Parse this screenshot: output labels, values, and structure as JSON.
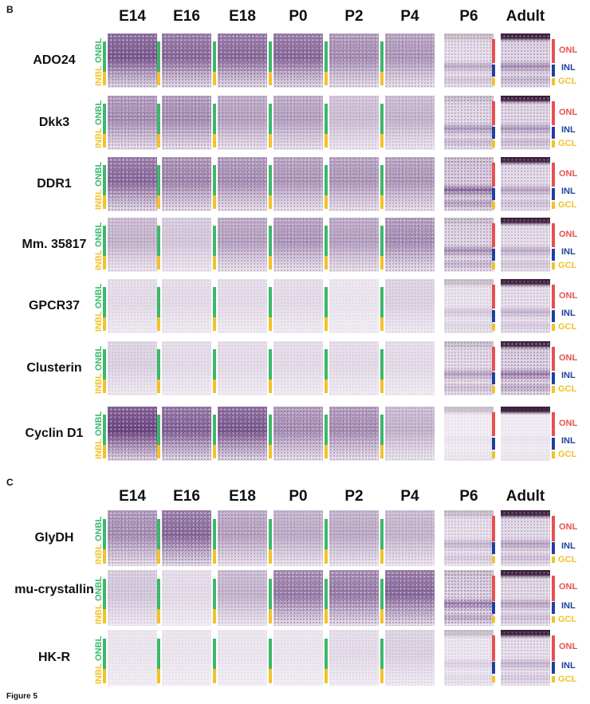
{
  "colors": {
    "onbl": "#3cb86a",
    "inbl": "#f2c22a",
    "onl": "#e8504f",
    "inl": "#2040a0",
    "gcl": "#f2c22a",
    "stain": "#5a2e72"
  },
  "sections": [
    {
      "label": "B",
      "columns": [
        "E14",
        "E16",
        "E18",
        "P0",
        "P2",
        "P4",
        "P6",
        "Adult"
      ],
      "rows": [
        {
          "label": "ADO24",
          "intensity": [
            0.8,
            0.7,
            0.7,
            0.7,
            0.5,
            0.45,
            0.35,
            0.5
          ]
        },
        {
          "label": "Dkk3",
          "intensity": [
            0.5,
            0.5,
            0.4,
            0.4,
            0.25,
            0.3,
            0.45,
            0.45
          ]
        },
        {
          "label": "DDR1",
          "intensity": [
            0.7,
            0.55,
            0.5,
            0.45,
            0.45,
            0.45,
            0.7,
            0.4
          ]
        },
        {
          "label": "Mm. 35817",
          "intensity": [
            0.3,
            0.2,
            0.4,
            0.45,
            0.4,
            0.5,
            0.5,
            0.35
          ]
        },
        {
          "label": "GPCR37",
          "intensity": [
            0.1,
            0.1,
            0.1,
            0.1,
            0.05,
            0.15,
            0.2,
            0.3
          ]
        },
        {
          "label": "Clusterin",
          "intensity": [
            0.15,
            0.1,
            0.1,
            0.1,
            0.1,
            0.1,
            0.4,
            0.6
          ]
        },
        {
          "label": "Cyclin D1",
          "intensity": [
            0.9,
            0.75,
            0.8,
            0.5,
            0.5,
            0.3,
            0.05,
            0.05
          ]
        }
      ]
    },
    {
      "label": "C",
      "columns": [
        "E14",
        "E16",
        "E18",
        "P0",
        "P2",
        "P4",
        "P6",
        "Adult"
      ],
      "rows": [
        {
          "label": "GlyDH",
          "intensity": [
            0.5,
            0.7,
            0.4,
            0.35,
            0.35,
            0.3,
            0.3,
            0.4
          ]
        },
        {
          "label": "mu-crystallin",
          "intensity": [
            0.2,
            0.1,
            0.3,
            0.6,
            0.6,
            0.7,
            0.6,
            0.4
          ]
        },
        {
          "label": "HK-R",
          "intensity": [
            0.05,
            0.05,
            0.05,
            0.05,
            0.1,
            0.15,
            0.15,
            0.3
          ]
        }
      ]
    }
  ],
  "layer_labels": {
    "onbl": "ONBL",
    "inbl": "INBL",
    "onl": "ONL",
    "inl": "INL",
    "gcl": "GCL"
  },
  "caption": "Figure 5"
}
